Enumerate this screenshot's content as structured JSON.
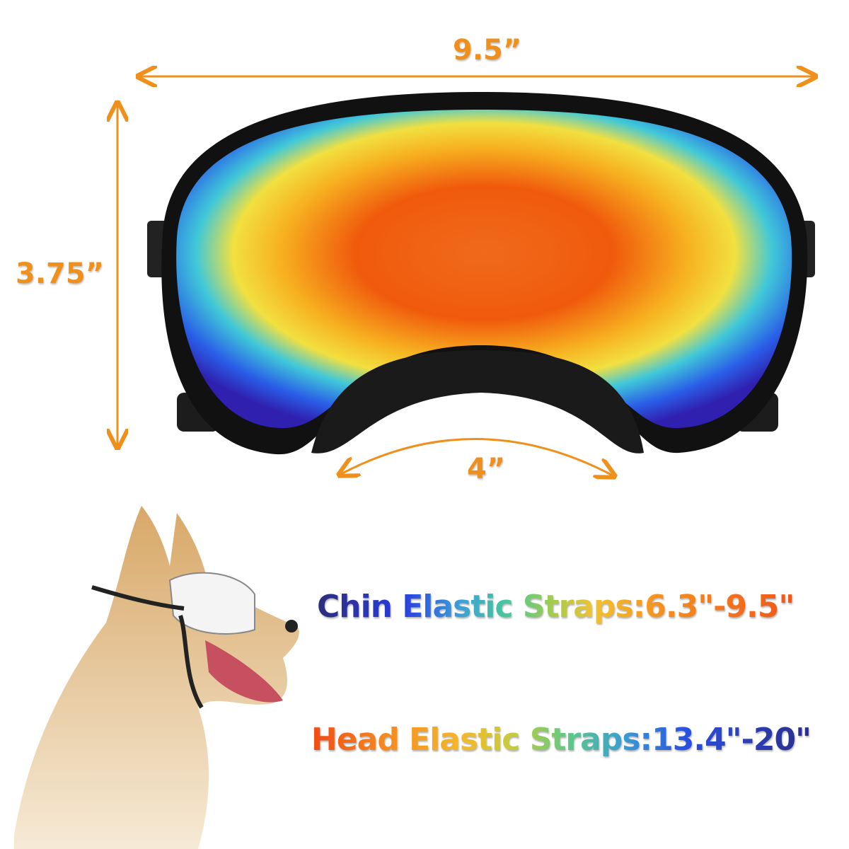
{
  "dimensions": {
    "width": "9.5”",
    "height": "3.75”",
    "nose_bridge": "4”"
  },
  "straps": {
    "chin": "Chin Elastic Straps:6.3\"-9.5\"",
    "head": "Head Elastic Straps:13.4\"-20\""
  },
  "colors": {
    "dimension_accent": "#f0901c",
    "frame": "#111111"
  }
}
